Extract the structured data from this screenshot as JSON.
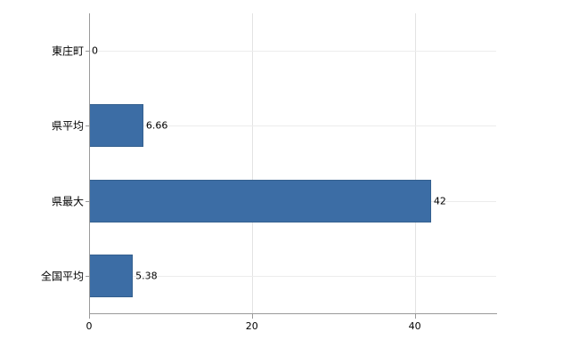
{
  "chart_data": {
    "type": "bar",
    "orientation": "horizontal",
    "title": "",
    "xlabel": "",
    "ylabel": "",
    "categories": [
      "東庄町",
      "県平均",
      "県最大",
      "全国平均"
    ],
    "values": [
      0,
      6.66,
      42,
      5.38
    ],
    "value_labels": [
      "0",
      "6.66",
      "42",
      "5.38"
    ],
    "x_ticks": [
      0,
      20,
      40
    ],
    "x_tick_labels": [
      "0",
      "20",
      "40"
    ],
    "xlim": [
      0,
      50
    ],
    "grid": "vertical light gray at x ticks, faint horizontal at category centers",
    "legend": "none",
    "bar_color": "#3c6da5",
    "axis_color": "#9a9a9a",
    "background_color": "#ffffff"
  }
}
